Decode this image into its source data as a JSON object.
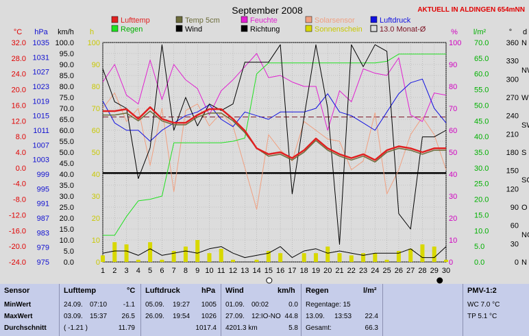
{
  "header": {
    "title": "September 2008",
    "live_label": "AKTUELL IN ALDINGEN 654mNN"
  },
  "colors": {
    "lufttemp": "#e02020",
    "temp5cm": "#6b6b3a",
    "feuchte": "#e020d0",
    "solarsensor": "#f0a080",
    "luftdruck": "#1010e0",
    "regen": "#20e020",
    "wind": "#000000",
    "richtung": "#000000",
    "sonnenschein": "#d8d800",
    "monthavg": "#7a1020"
  },
  "chart_data": {
    "type": "line",
    "x": [
      1,
      2,
      3,
      4,
      5,
      6,
      7,
      8,
      9,
      10,
      11,
      12,
      13,
      14,
      15,
      16,
      17,
      18,
      19,
      20,
      21,
      22,
      23,
      24,
      25,
      26,
      27,
      28,
      29,
      30
    ],
    "xlim": [
      1,
      30
    ],
    "axes": [
      {
        "label": "°C",
        "range": [
          -24,
          32
        ],
        "ticks": [
          "32.0",
          "28.0",
          "24.0",
          "20.0",
          "16.0",
          "12.0",
          "8.0",
          "4.0",
          "0.0",
          "-4.0",
          "-8.0",
          "-12.0",
          "-16.0",
          "-20.0",
          "-24.0"
        ]
      },
      {
        "label": "hPa",
        "range": [
          975,
          1035
        ],
        "ticks": [
          "1035",
          "1031",
          "1027",
          "1023",
          "1019",
          "1015",
          "1011",
          "1007",
          "1003",
          "999",
          "995",
          "991",
          "987",
          "983",
          "979",
          "975"
        ]
      },
      {
        "label": "km/h",
        "range": [
          0,
          100
        ],
        "ticks": [
          "100.0",
          "95.0",
          "90.0",
          "85.0",
          "80.0",
          "75.0",
          "70.0",
          "65.0",
          "60.0",
          "55.0",
          "50.0",
          "45.0",
          "40.0",
          "35.0",
          "30.0",
          "25.0",
          "20.0",
          "15.0",
          "10.0",
          "5.0",
          "0.0"
        ]
      },
      {
        "label": "h",
        "range": [
          0,
          100
        ],
        "ticks": [
          "100",
          "90",
          "80",
          "70",
          "60",
          "50",
          "40",
          "30",
          "20",
          "10",
          "0"
        ]
      },
      {
        "label": "%",
        "range": [
          0,
          100
        ],
        "ticks": [
          "100",
          "90",
          "80",
          "70",
          "60",
          "50",
          "40",
          "30",
          "20",
          "10",
          "0"
        ]
      },
      {
        "label": "l/m²",
        "range": [
          0,
          70
        ],
        "ticks": [
          "70.0",
          "65.0",
          "60.0",
          "55.0",
          "50.0",
          "45.0",
          "40.0",
          "35.0",
          "30.0",
          "25.0",
          "20.0",
          "15.0",
          "10.0",
          "5.0",
          "0.0"
        ]
      },
      {
        "label": "°",
        "range": [
          0,
          360
        ],
        "ticks": [
          "360",
          "330",
          "300",
          "270",
          "240",
          "210",
          "180",
          "150",
          "120",
          "90",
          "60",
          "30",
          "0"
        ]
      },
      {
        "label": "d",
        "ticks": [
          "N",
          "NW",
          "W",
          "SW",
          "S",
          "SO",
          "O",
          "NO",
          "N"
        ]
      }
    ],
    "legend": [
      {
        "name": "Lufttemp",
        "key": "lufttemp"
      },
      {
        "name": "Temp 5cm",
        "key": "temp5cm"
      },
      {
        "name": "Feuchte",
        "key": "feuchte"
      },
      {
        "name": "Solarsensor",
        "key": "solarsensor"
      },
      {
        "name": "Luftdruck",
        "key": "luftdruck"
      },
      {
        "name": "Regen",
        "key": "regen"
      },
      {
        "name": "Wind",
        "key": "wind"
      },
      {
        "name": "Richtung",
        "key": "richtung"
      },
      {
        "name": "Sonnenschein",
        "key": "sonnenschein"
      },
      {
        "name": "13.0 Monat-Ø",
        "key": "monthavg"
      }
    ],
    "series": [
      {
        "name": "Lufttemp",
        "key": "lufttemp",
        "axis": 0,
        "values": [
          14.5,
          14.5,
          15.0,
          12.5,
          15.5,
          12.5,
          11.5,
          11.5,
          13.5,
          15.0,
          15.0,
          12.5,
          9.5,
          5.0,
          3.5,
          4.0,
          2.5,
          4.5,
          7.5,
          5.0,
          3.5,
          2.5,
          3.5,
          2.0,
          4.5,
          5.5,
          5.0,
          4.0,
          5.0,
          5.0
        ]
      },
      {
        "name": "Temp 5cm",
        "key": "temp5cm",
        "axis": 0,
        "values": [
          13.5,
          13.5,
          14.0,
          12.0,
          14.5,
          12.0,
          11.0,
          11.0,
          13.0,
          14.0,
          14.0,
          12.0,
          9.0,
          5.0,
          3.0,
          3.5,
          2.0,
          4.0,
          7.0,
          4.5,
          3.0,
          2.0,
          3.0,
          1.5,
          4.0,
          5.0,
          4.5,
          3.5,
          4.5,
          4.5
        ]
      },
      {
        "name": "Feuchte",
        "key": "feuchte",
        "values": [
          82,
          90,
          76,
          72,
          92,
          74,
          90,
          83,
          79,
          67,
          78,
          83,
          89,
          95,
          84,
          85,
          82,
          80,
          80,
          60,
          78,
          73,
          88,
          86,
          85,
          93,
          67,
          64,
          77,
          76
        ]
      },
      {
        "name": "Solarsensor",
        "key": "solarsensor",
        "values": [
          70,
          77,
          64,
          70,
          44,
          70,
          32,
          69,
          72,
          62,
          68,
          62,
          43,
          24,
          58,
          51,
          46,
          64,
          60,
          56,
          55,
          42,
          46,
          68,
          31,
          42,
          58,
          66,
          58,
          42
        ]
      },
      {
        "name": "Luftdruck",
        "key": "luftdruck",
        "axis": 1,
        "values": [
          1019,
          1013,
          1011,
          1011,
          1008,
          1011,
          1013,
          1015,
          1016,
          1018,
          1014,
          1012,
          1016,
          1015,
          1014,
          1016,
          1016,
          1016,
          1017,
          1021,
          1016,
          1015,
          1013,
          1011,
          1016,
          1021,
          1024,
          1025,
          1017,
          1013
        ]
      },
      {
        "name": "Regen",
        "key": "regen",
        "axis": 5,
        "values": [
          8.5,
          8.5,
          14.5,
          19.5,
          20.0,
          21.0,
          38.0,
          38.0,
          38.0,
          38.0,
          38.0,
          38.5,
          39.5,
          60.0,
          63.5,
          63.5,
          63.5,
          63.5,
          63.5,
          63.5,
          63.5,
          63.5,
          63.5,
          63.5,
          64.0,
          66.3,
          66.3,
          66.3,
          66.3,
          66.3
        ]
      },
      {
        "name": "Wind",
        "key": "wind",
        "axis": 2,
        "values": [
          88,
          73,
          70,
          38,
          52,
          99,
          60,
          75,
          62,
          72,
          69,
          72,
          91,
          91,
          91,
          99,
          31,
          66,
          99,
          70,
          8,
          99,
          89,
          99,
          96,
          22,
          15,
          57,
          57,
          60
        ]
      },
      {
        "name": "Wind (km/h) lower",
        "key": "windlow",
        "axis": 2,
        "values": [
          4,
          5,
          5,
          3,
          6,
          3,
          4,
          5,
          4,
          6,
          7,
          4,
          2,
          3,
          4,
          7,
          2,
          5,
          6,
          4,
          5,
          4,
          3,
          4,
          4,
          4,
          6,
          2,
          2,
          7
        ]
      },
      {
        "name": "Sonnenschein",
        "key": "sonnenschein",
        "type": "bar",
        "values": [
          3,
          9,
          8,
          1,
          9,
          1,
          5,
          7,
          10,
          4,
          6,
          1,
          0,
          1,
          5,
          4,
          0,
          4,
          4,
          7,
          4,
          3,
          4,
          4,
          1,
          5,
          6,
          8,
          7,
          1
        ]
      }
    ],
    "reference_lines": [
      {
        "name": "13.0 Monat-Ø",
        "axis": 0,
        "value": 13.0,
        "style": "dashed"
      },
      {
        "name": "black level line",
        "axis": 2,
        "value": 40.5
      }
    ],
    "grid": true,
    "legend_placement": "top"
  },
  "stats": {
    "sensor": {
      "header": "Sensor",
      "rows": [
        "MinWert",
        "MaxWert",
        "Durchschnitt"
      ]
    },
    "lufttemp": {
      "header": "Lufttemp",
      "unit": "°C",
      "rows": [
        {
          "date": "24.09.",
          "time": "07:10",
          "value": "-1.1"
        },
        {
          "date": "03.09.",
          "time": "15:37",
          "value": "26.5"
        },
        {
          "date": "( -1.21 )",
          "time": "",
          "value": "11.79"
        }
      ]
    },
    "luftdruck": {
      "header": "Luftdruck",
      "unit": "hPa",
      "rows": [
        {
          "date": "05.09.",
          "time": "19:27",
          "value": "1005"
        },
        {
          "date": "26.09.",
          "time": "19:54",
          "value": "1026"
        },
        {
          "date": "",
          "time": "",
          "value": "1017.4"
        }
      ]
    },
    "wind": {
      "header": "Wind",
      "unit": "km/h",
      "rows": [
        {
          "date": "01.09.",
          "time": "00:02",
          "value": "0.0"
        },
        {
          "date": "27.09.",
          "time": "12:IO-NO",
          "value": "44.8"
        },
        {
          "date": "4201.3 km",
          "time": "",
          "value": "5.8"
        }
      ]
    },
    "regen": {
      "header": "Regen",
      "unit": "l/m²",
      "rows": [
        {
          "date": "Regentage: 15",
          "time": "",
          "value": ""
        },
        {
          "date": "13.09.",
          "time": "13:53",
          "value": "22.4"
        },
        {
          "date": "Gesamt:",
          "time": "",
          "value": "66.3"
        }
      ]
    },
    "pmv": {
      "header": "PMV-1:2",
      "rows": [
        "WC 7.0 °C",
        "TP 5.1 °C"
      ]
    }
  }
}
